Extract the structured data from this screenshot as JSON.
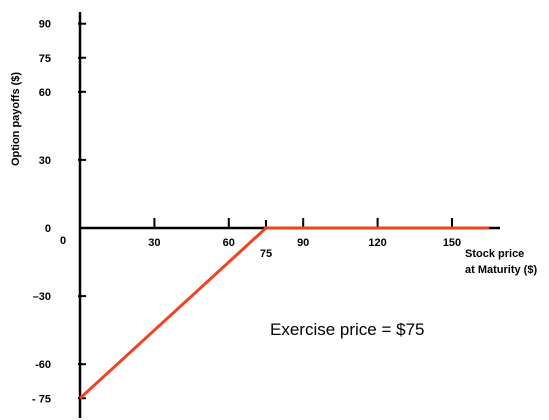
{
  "chart_data": {
    "type": "line",
    "title": "",
    "xlabel_lines": [
      "Stock price",
      "at Maturity ($)"
    ],
    "ylabel": "Option payoffs ($)",
    "xlim": [
      0,
      165
    ],
    "ylim": [
      -75,
      95
    ],
    "x_ticks": [
      0,
      30,
      60,
      75,
      90,
      120,
      150
    ],
    "x_tick_labels": [
      "0",
      "30",
      "60",
      "75",
      "90",
      "120",
      "150"
    ],
    "y_ticks": [
      90,
      75,
      60,
      30,
      0,
      -30,
      -60,
      -75
    ],
    "y_tick_labels": [
      "90",
      "75",
      "60",
      "30",
      "0",
      "–30",
      "-60",
      "- 75"
    ],
    "series": [
      {
        "color": "#ee4422",
        "x": [
          0,
          75,
          165
        ],
        "y": [
          -75,
          0,
          0
        ]
      }
    ],
    "annotation": "Exercise price = $75",
    "grid": false,
    "axis_color": "#000000"
  }
}
